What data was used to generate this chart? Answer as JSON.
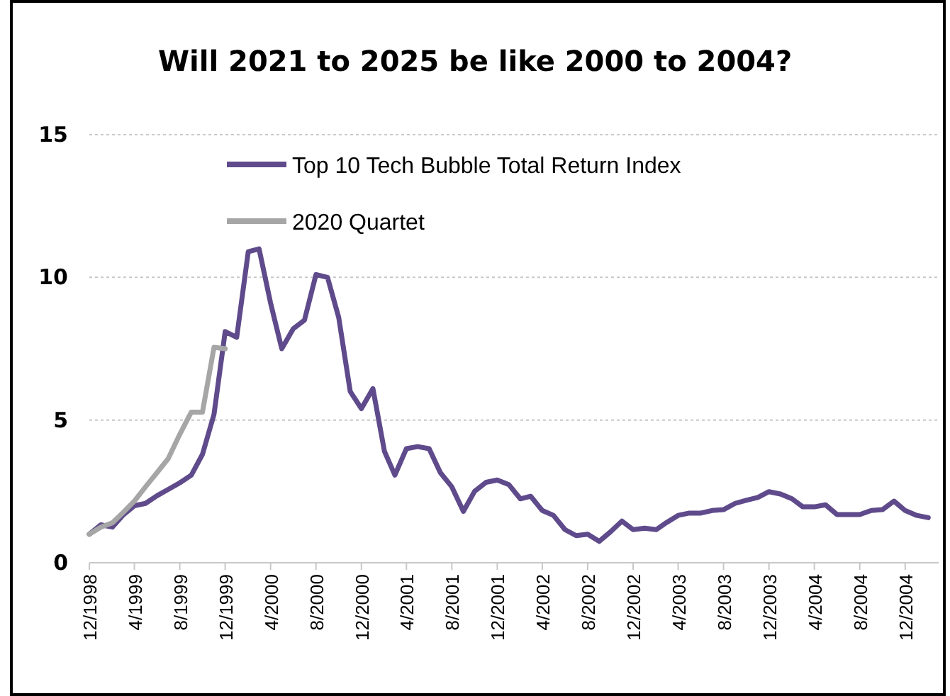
{
  "chart_data": {
    "type": "line",
    "title": "Will 2021 to 2025 be like 2000 to 2004?",
    "series": [
      {
        "name": "Top 10 Tech Bubble Total Return Index",
        "color": "#5f4b8b",
        "x": [
          "1998-12",
          "1999-01",
          "1999-02",
          "1999-03",
          "1999-04",
          "1999-05",
          "1999-06",
          "1999-07",
          "1999-08",
          "1999-09",
          "1999-10",
          "1999-11",
          "1999-12",
          "2000-01",
          "2000-02",
          "2000-03",
          "2000-04",
          "2000-05",
          "2000-06",
          "2000-07",
          "2000-08",
          "2000-09",
          "2000-10",
          "2000-11",
          "2000-12",
          "2001-01",
          "2001-02",
          "2001-03",
          "2001-04",
          "2001-05",
          "2001-06",
          "2001-07",
          "2001-08",
          "2001-09",
          "2001-10",
          "2001-11",
          "2001-12",
          "2002-01",
          "2002-02",
          "2002-03",
          "2002-04",
          "2002-05",
          "2002-06",
          "2002-07",
          "2002-08",
          "2002-09",
          "2002-10",
          "2002-11",
          "2002-12",
          "2003-01",
          "2003-02",
          "2003-03",
          "2003-04",
          "2003-05",
          "2003-06",
          "2003-07",
          "2003-08",
          "2003-09",
          "2003-10",
          "2003-11",
          "2003-12",
          "2004-01",
          "2004-02",
          "2004-03",
          "2004-04",
          "2004-05",
          "2004-06",
          "2004-07",
          "2004-08",
          "2004-09",
          "2004-10",
          "2004-11",
          "2004-12",
          "2005-01",
          "2005-02"
        ],
        "values": [
          1.0,
          1.33,
          1.25,
          1.66,
          2.0,
          2.08,
          2.35,
          2.57,
          2.8,
          3.07,
          3.8,
          5.2,
          8.1,
          7.9,
          10.9,
          11.0,
          9.1,
          7.5,
          8.2,
          8.5,
          10.1,
          10.0,
          8.6,
          6.0,
          5.4,
          6.1,
          3.9,
          3.07,
          4.0,
          4.07,
          4.0,
          3.16,
          2.66,
          1.8,
          2.5,
          2.82,
          2.9,
          2.74,
          2.24,
          2.33,
          1.83,
          1.66,
          1.16,
          0.95,
          1.0,
          0.75,
          1.08,
          1.46,
          1.16,
          1.21,
          1.16,
          1.41,
          1.66,
          1.74,
          1.74,
          1.83,
          1.86,
          2.08,
          2.19,
          2.29,
          2.49,
          2.41,
          2.24,
          1.96,
          1.96,
          2.03,
          1.69,
          1.69,
          1.69,
          1.83,
          1.86,
          2.16,
          1.83,
          1.66,
          1.58
        ]
      },
      {
        "name": "2020 Quartet",
        "color": "#a6a6a6",
        "x": [
          "1998-12",
          "1999-01",
          "1999-02",
          "1999-03",
          "1999-04",
          "1999-05",
          "1999-06",
          "1999-07",
          "1999-08",
          "1999-09",
          "1999-10",
          "1999-11",
          "1999-12"
        ],
        "values": [
          1.0,
          1.25,
          1.4,
          1.75,
          2.16,
          2.66,
          3.16,
          3.65,
          4.5,
          5.28,
          5.28,
          7.55,
          7.5
        ]
      }
    ],
    "xlim": [
      "1998-12",
      "2005-03"
    ],
    "xticks": [
      {
        "value": "1998-12",
        "label": "12/1998"
      },
      {
        "value": "1999-04",
        "label": "4/1999"
      },
      {
        "value": "1999-08",
        "label": "8/1999"
      },
      {
        "value": "1999-12",
        "label": "12/1999"
      },
      {
        "value": "2000-04",
        "label": "4/2000"
      },
      {
        "value": "2000-08",
        "label": "8/2000"
      },
      {
        "value": "2000-12",
        "label": "12/2000"
      },
      {
        "value": "2001-04",
        "label": "4/2001"
      },
      {
        "value": "2001-08",
        "label": "8/2001"
      },
      {
        "value": "2001-12",
        "label": "12/2001"
      },
      {
        "value": "2002-04",
        "label": "4/2002"
      },
      {
        "value": "2002-08",
        "label": "8/2002"
      },
      {
        "value": "2002-12",
        "label": "12/2002"
      },
      {
        "value": "2003-04",
        "label": "4/2003"
      },
      {
        "value": "2003-08",
        "label": "8/2003"
      },
      {
        "value": "2003-12",
        "label": "12/2003"
      },
      {
        "value": "2004-04",
        "label": "4/2004"
      },
      {
        "value": "2004-08",
        "label": "8/2004"
      },
      {
        "value": "2004-12",
        "label": "12/2004"
      }
    ],
    "ylim": [
      0,
      15
    ],
    "yticks": [
      0,
      5,
      10,
      15
    ],
    "grid": "y",
    "legend": "top",
    "marker": "none",
    "line_style": "solid"
  }
}
